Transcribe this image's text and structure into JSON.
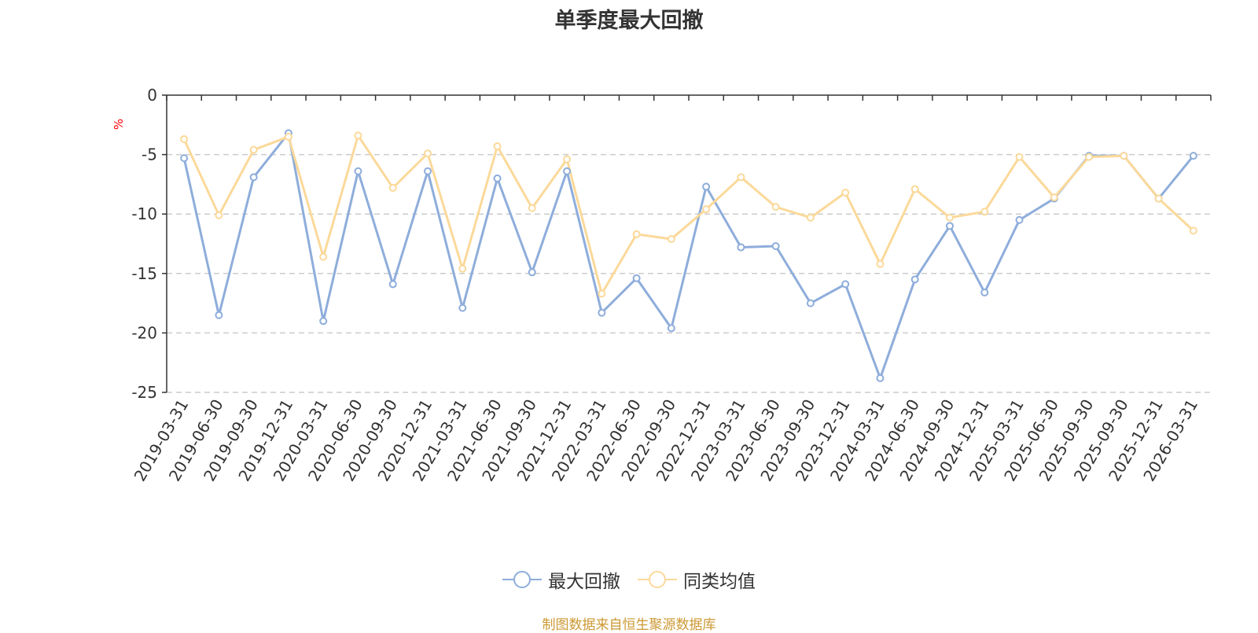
{
  "chart_data": {
    "type": "line",
    "title": "单季度最大回撤",
    "ylabel": "%",
    "xlabel": "",
    "ylim": [
      -25,
      0
    ],
    "yticks": [
      0,
      -5,
      -10,
      -15,
      -20,
      -25
    ],
    "categories": [
      "2019-03-31",
      "2019-06-30",
      "2019-09-30",
      "2019-12-31",
      "2020-03-31",
      "2020-06-30",
      "2020-09-30",
      "2020-12-31",
      "2021-03-31",
      "2021-06-30",
      "2021-09-30",
      "2021-12-31",
      "2022-03-31",
      "2022-06-30",
      "2022-09-30",
      "2022-12-31",
      "2023-03-31",
      "2023-06-30",
      "2023-09-30",
      "2023-12-31",
      "2024-03-31",
      "2024-06-30",
      "2024-09-30",
      "2024-12-31",
      "2025-03-31",
      "2025-06-30",
      "2025-09-30",
      "2025-09-30",
      "2025-12-31",
      "2026-03-31"
    ],
    "series": [
      {
        "name": "最大回撤",
        "color": "#8eaddb",
        "values": [
          -5.3,
          -18.5,
          -6.9,
          -3.2,
          -19.0,
          -6.4,
          -15.9,
          -6.4,
          -17.9,
          -7.0,
          -14.9,
          -6.4,
          -18.3,
          -15.4,
          -19.6,
          -7.7,
          -12.8,
          -12.7,
          -17.5,
          -15.9,
          -23.8,
          -15.5,
          -11.0,
          -16.6,
          -10.5,
          -8.7,
          -5.1,
          -5.1,
          -8.7,
          -5.1
        ]
      },
      {
        "name": "同类均值",
        "color": "#fbd99a",
        "values": [
          -3.7,
          -10.1,
          -4.6,
          -3.5,
          -13.6,
          -3.4,
          -7.8,
          -4.9,
          -14.6,
          -4.3,
          -9.5,
          -5.4,
          -16.7,
          -11.7,
          -12.1,
          -9.6,
          -6.9,
          -9.4,
          -10.3,
          -8.2,
          -14.2,
          -7.9,
          -10.3,
          -9.8,
          -5.2,
          -8.6,
          -5.2,
          -5.1,
          -8.7,
          -11.4
        ]
      }
    ],
    "legend_position": "bottom-center",
    "grid": true
  },
  "source": "制图数据来自恒生聚源数据库"
}
